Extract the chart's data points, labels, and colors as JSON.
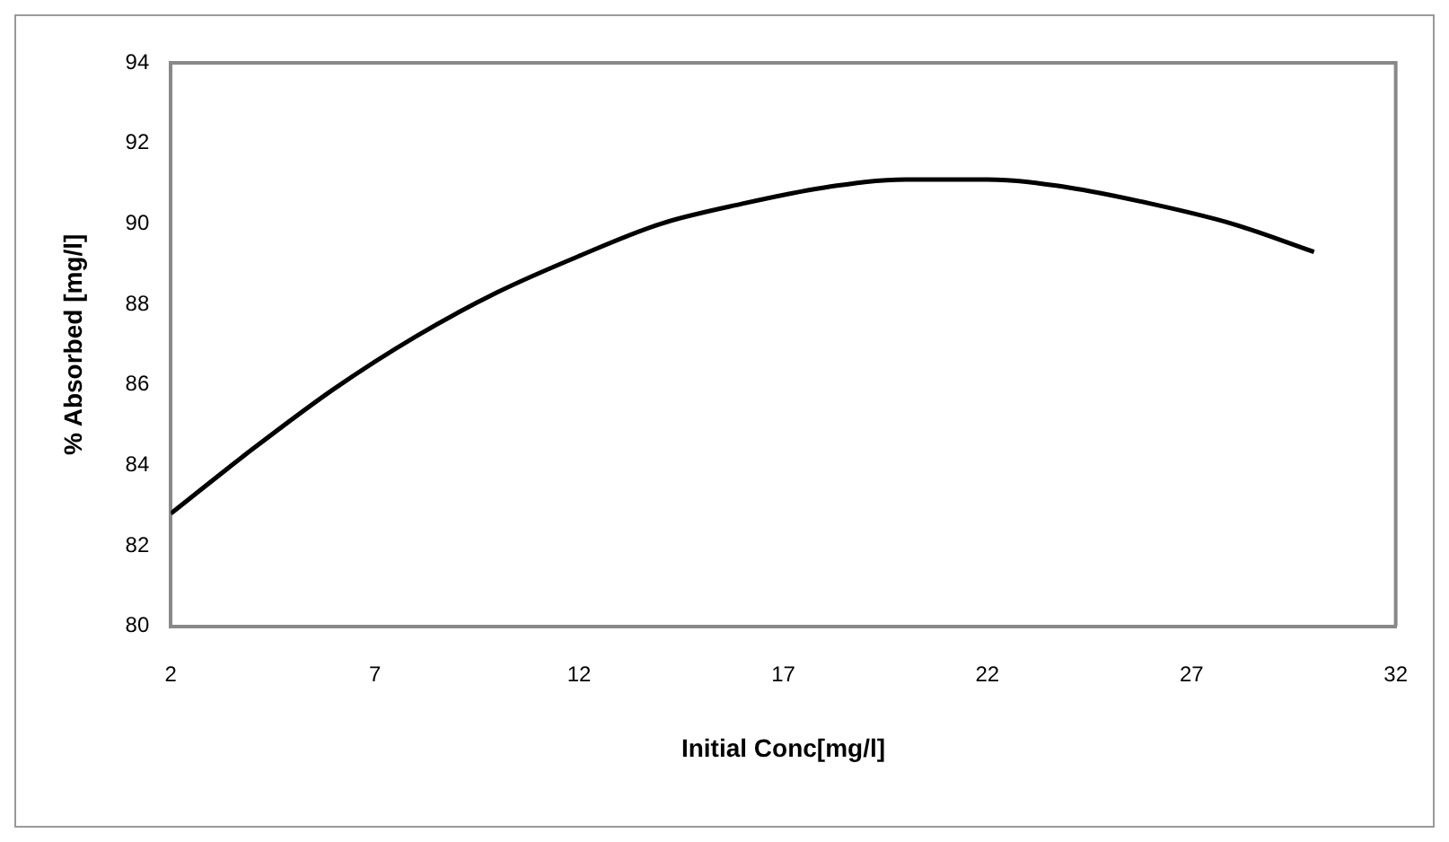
{
  "chart_data": {
    "type": "line",
    "xlabel": "Initial Conc[mg/l]",
    "ylabel": "% Absorbed [mg/l]",
    "x": [
      2,
      4,
      6,
      8,
      10,
      12,
      14,
      16,
      18,
      20,
      22,
      24,
      26,
      28,
      30
    ],
    "series": [
      {
        "color": "#000000",
        "values": [
          82.8,
          84.4,
          85.9,
          87.2,
          88.3,
          89.2,
          90.0,
          90.5,
          90.9,
          91.1,
          91.1,
          90.9,
          90.5,
          90.0,
          89.3
        ]
      }
    ],
    "xlim": [
      2,
      32
    ],
    "xticks": [
      2,
      7,
      12,
      17,
      22,
      27,
      32
    ],
    "ylim": [
      80,
      94
    ],
    "yticks": [
      80,
      82,
      84,
      86,
      88,
      90,
      92,
      94
    ],
    "grid": false,
    "legend": false,
    "marker": "none",
    "line_style": "solid"
  }
}
